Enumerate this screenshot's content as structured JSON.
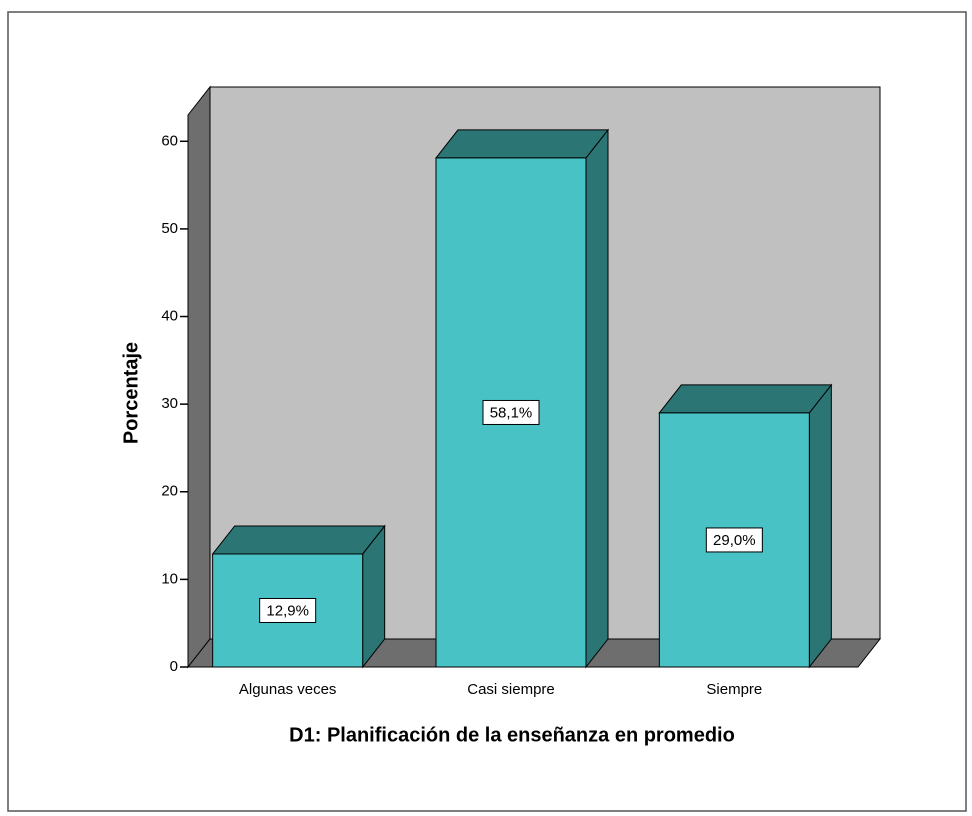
{
  "chart_data": {
    "type": "bar3d",
    "x_label": "D1: Planificación de la enseñanza en promedio",
    "y_label": "Porcentaje",
    "categories": [
      "Algunas veces",
      "Casi siempre",
      "Siempre"
    ],
    "values": [
      12.9,
      58.1,
      29.0
    ],
    "value_labels": [
      "12,9%",
      "58,1%",
      "29,0%"
    ],
    "color": "#48c2c5",
    "ylim": [
      0,
      63
    ],
    "yticks": [
      0,
      10,
      20,
      30,
      40,
      50,
      60
    ]
  }
}
